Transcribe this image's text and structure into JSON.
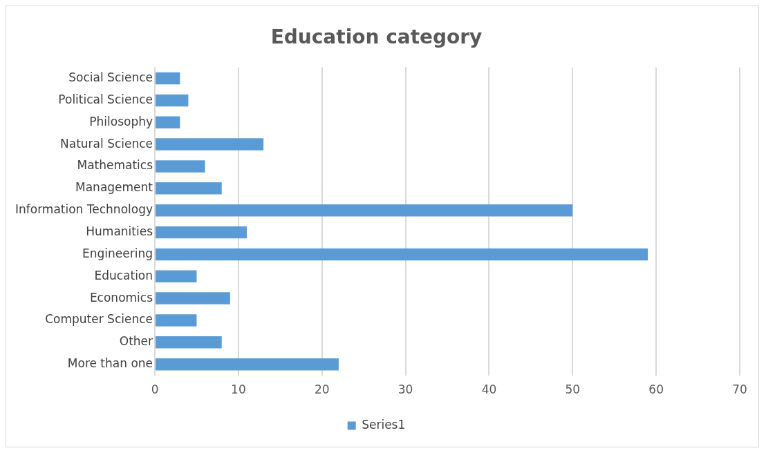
{
  "chart_data": {
    "type": "bar",
    "title": "Education category",
    "orientation": "horizontal",
    "categories": [
      "Social Science",
      "Political Science",
      "Philosophy",
      "Natural Science",
      "Mathematics",
      "Management",
      "Information Technology",
      "Humanities",
      "Engineering",
      "Education",
      "Economics",
      "Computer Science",
      "Other",
      "More than one"
    ],
    "series": [
      {
        "name": "Series1",
        "color": "#5b9bd5",
        "values": [
          3,
          4,
          3,
          13,
          6,
          8,
          50,
          11,
          59,
          5,
          9,
          5,
          8,
          22
        ]
      }
    ],
    "xlim": [
      0,
      70
    ],
    "xticks": [
      0,
      10,
      20,
      30,
      40,
      50,
      60,
      70
    ],
    "grid": "x",
    "legend": "bottom"
  }
}
